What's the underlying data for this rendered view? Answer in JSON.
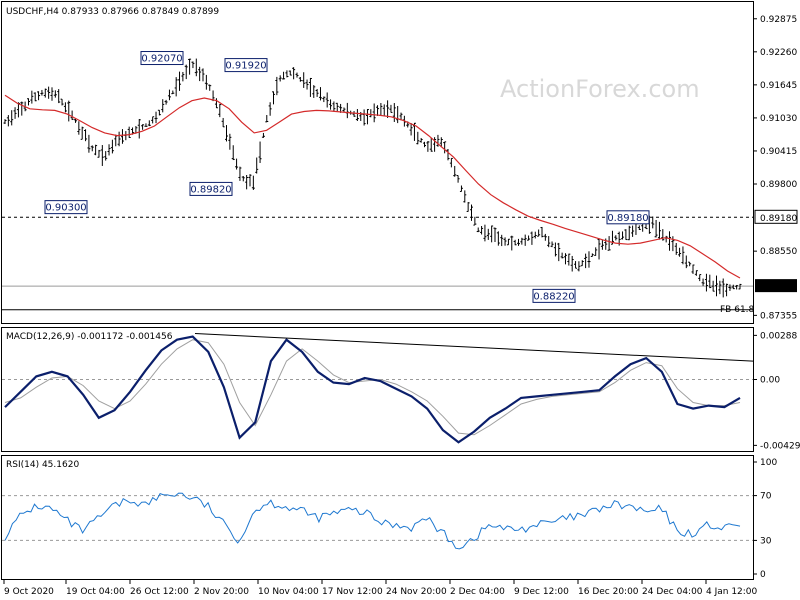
{
  "chart_data": [
    {
      "type": "candlestick",
      "title": "USDCHF,H4  0.87933 0.87966 0.87849 0.87899",
      "watermark": "ActionForex.com",
      "ylim": [
        0.8725,
        0.9315
      ],
      "y_ticks": [
        "0.92875",
        "0.92260",
        "0.91645",
        "0.91030",
        "0.90415",
        "0.89800",
        "0.88550",
        "0.87355"
      ],
      "y_tick_values": [
        0.92875,
        0.9226,
        0.91645,
        0.9103,
        0.90415,
        0.898,
        0.8855,
        0.87355
      ],
      "hline": {
        "value": 0.8918,
        "label": "0.89180"
      },
      "last_price": {
        "value": 0.87899,
        "label": "0.87899"
      },
      "fib_label": "FB 61.8",
      "fib_level": 0.8746,
      "annotations": [
        {
          "label": "0.92070",
          "value": 0.9207
        },
        {
          "label": "0.91920",
          "value": 0.9192
        },
        {
          "label": "0.90300",
          "value": 0.903
        },
        {
          "label": "0.89820",
          "value": 0.8982
        },
        {
          "label": "0.88220",
          "value": 0.8822
        },
        {
          "label": "0.89180",
          "value": 0.8918
        }
      ],
      "close_path": [
        0.9095,
        0.9112,
        0.9135,
        0.915,
        0.9148,
        0.912,
        0.9085,
        0.9045,
        0.903,
        0.9065,
        0.9075,
        0.9085,
        0.91,
        0.9135,
        0.917,
        0.9205,
        0.918,
        0.913,
        0.906,
        0.899,
        0.8985,
        0.91,
        0.9175,
        0.919,
        0.917,
        0.915,
        0.913,
        0.912,
        0.911,
        0.9105,
        0.9115,
        0.912,
        0.91,
        0.907,
        0.9045,
        0.906,
        0.901,
        0.895,
        0.8895,
        0.8885,
        0.8875,
        0.887,
        0.888,
        0.889,
        0.8865,
        0.884,
        0.8825,
        0.8845,
        0.8865,
        0.888,
        0.889,
        0.89,
        0.8905,
        0.888,
        0.886,
        0.883,
        0.88,
        0.879,
        0.8785,
        0.879
      ],
      "ma_path": [
        0.9145,
        0.913,
        0.912,
        0.9118,
        0.9117,
        0.911,
        0.9098,
        0.9085,
        0.9075,
        0.907,
        0.9072,
        0.9078,
        0.9088,
        0.9105,
        0.9122,
        0.9135,
        0.914,
        0.9135,
        0.912,
        0.9095,
        0.9075,
        0.908,
        0.9095,
        0.911,
        0.9115,
        0.9117,
        0.9116,
        0.9114,
        0.9112,
        0.911,
        0.9108,
        0.9105,
        0.9098,
        0.9088,
        0.907,
        0.905,
        0.903,
        0.9005,
        0.898,
        0.896,
        0.8945,
        0.8932,
        0.892,
        0.8912,
        0.8905,
        0.8897,
        0.889,
        0.8883,
        0.8876,
        0.887,
        0.8868,
        0.887,
        0.8875,
        0.888,
        0.8875,
        0.8865,
        0.885,
        0.8835,
        0.8818,
        0.8805
      ]
    },
    {
      "type": "line",
      "title": "MACD(12,26,9) -0.001172 -0.001456",
      "ylim": [
        -0.0046,
        0.0031
      ],
      "y_ticks": [
        "0.00288",
        "0.00",
        "-0.004298"
      ],
      "y_tick_values": [
        0.00288,
        0.0,
        -0.004298
      ],
      "macd": [
        -0.0018,
        -0.0008,
        0.0002,
        0.0005,
        0.0002,
        -0.001,
        -0.0025,
        -0.002,
        -0.0008,
        0.0006,
        0.0019,
        0.0026,
        0.0028,
        0.0018,
        -0.0005,
        -0.0038,
        -0.0028,
        0.0012,
        0.0026,
        0.0018,
        0.0005,
        -0.0002,
        -0.0003,
        0.0001,
        -0.0001,
        -0.0006,
        -0.0011,
        -0.0019,
        -0.0033,
        -0.0041,
        -0.0034,
        -0.0025,
        -0.0019,
        -0.0012,
        -0.0011,
        -0.001,
        -0.0009,
        -0.0008,
        -0.0007,
        0.0002,
        0.001,
        0.0014,
        0.0005,
        -0.0016,
        -0.0019,
        -0.0017,
        -0.0018,
        -0.0012
      ],
      "signal": [
        -0.0015,
        -0.0012,
        -0.0005,
        0.0001,
        0.0002,
        -0.0004,
        -0.0014,
        -0.0019,
        -0.0014,
        -0.0003,
        0.001,
        0.002,
        0.0026,
        0.0024,
        0.001,
        -0.0015,
        -0.003,
        -0.001,
        0.0012,
        0.002,
        0.0012,
        0.0003,
        -0.0002,
        -0.0001,
        0.0,
        -0.0003,
        -0.0008,
        -0.0014,
        -0.0024,
        -0.0035,
        -0.0036,
        -0.003,
        -0.0023,
        -0.0016,
        -0.0013,
        -0.0011,
        -0.001,
        -0.0009,
        -0.0008,
        -0.0002,
        0.0006,
        0.0011,
        0.0009,
        -0.0006,
        -0.0015,
        -0.0017,
        -0.0017,
        -0.0015
      ],
      "trendline": [
        0.003,
        0.0012
      ]
    },
    {
      "type": "line",
      "title": "RSI(14) 45.1620",
      "ylim": [
        0,
        100
      ],
      "y_ticks": [
        "100",
        "70",
        "30",
        "0"
      ],
      "y_tick_values": [
        100,
        70,
        30,
        0
      ],
      "rsi": [
        34,
        52,
        61,
        58,
        47,
        38,
        50,
        61,
        66,
        62,
        70,
        72,
        68,
        60,
        44,
        30,
        58,
        64,
        60,
        56,
        50,
        54,
        57,
        55,
        46,
        44,
        42,
        50,
        36,
        24,
        32,
        44,
        40,
        40,
        44,
        46,
        50,
        52,
        58,
        62,
        60,
        55,
        58,
        38,
        36,
        44,
        40,
        45
      ],
      "x_ticks": [
        "9 Oct 2020",
        "19 Oct 04:00",
        "26 Oct 12:00",
        "2 Nov 20:00",
        "10 Nov 04:00",
        "17 Nov 12:00",
        "24 Nov 20:00",
        "2 Dec 04:00",
        "9 Dec 12:00",
        "16 Dec 20:00",
        "24 Dec 04:00",
        "4 Jan 12:00"
      ]
    }
  ]
}
